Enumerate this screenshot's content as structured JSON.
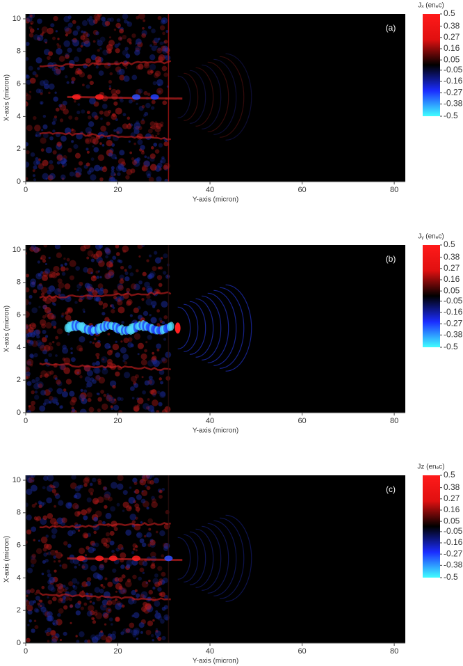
{
  "chart_data": [
    {
      "type": "heatmap",
      "panel_label": "(a)",
      "xlabel": "Y-axis (micron)",
      "ylabel": "X-axis (micron)",
      "xlim": [
        0,
        82.4
      ],
      "xticks": [
        0,
        20,
        40,
        60,
        80
      ],
      "ylim": [
        0,
        10.3
      ],
      "yticks": [
        0,
        2,
        4,
        6,
        8,
        10
      ],
      "colorbar_label": "Jₓ (enₑc)",
      "clim": [
        -0.5,
        0.5
      ],
      "colorbar_ticks": [
        0.5,
        0.38,
        0.27,
        0.16,
        0.05,
        -0.05,
        -0.16,
        -0.27,
        -0.38,
        -0.5
      ],
      "colormap": [
        "#40ffff",
        "#1a2cff",
        "#000000",
        "#e01010",
        "#ff1a1a"
      ]
    },
    {
      "type": "heatmap",
      "panel_label": "(b)",
      "xlabel": "Y-axis (micron)",
      "ylabel": "X-axis (micron)",
      "xlim": [
        0,
        82.4
      ],
      "xticks": [
        0,
        20,
        40,
        60,
        80
      ],
      "ylim": [
        0,
        10.3
      ],
      "yticks": [
        0,
        2,
        4,
        6,
        8,
        10
      ],
      "colorbar_label": "Jᵧ (enₑc)",
      "clim": [
        -0.5,
        0.5
      ],
      "colorbar_ticks": [
        0.5,
        0.38,
        0.27,
        0.16,
        0.05,
        -0.05,
        -0.16,
        -0.27,
        -0.38,
        -0.5
      ],
      "colormap": [
        "#40ffff",
        "#1a2cff",
        "#000000",
        "#e01010",
        "#ff1a1a"
      ]
    },
    {
      "type": "heatmap",
      "panel_label": "(c)",
      "xlabel": "Y-axis (micron)",
      "ylabel": "X-axis (micron)",
      "xlim": [
        0,
        82.4
      ],
      "xticks": [
        0,
        20,
        40,
        60,
        80
      ],
      "ylim": [
        0,
        10.3
      ],
      "yticks": [
        0,
        2,
        4,
        6,
        8,
        10
      ],
      "colorbar_label": "Jz (enₑc)",
      "clim": [
        -0.5,
        0.5
      ],
      "colorbar_ticks": [
        0.5,
        0.38,
        0.27,
        0.16,
        0.05,
        -0.05,
        -0.16,
        -0.27,
        -0.38,
        -0.5
      ],
      "colormap": [
        "#40ffff",
        "#1a2cff",
        "#000000",
        "#e01010",
        "#ff1a1a"
      ]
    }
  ]
}
